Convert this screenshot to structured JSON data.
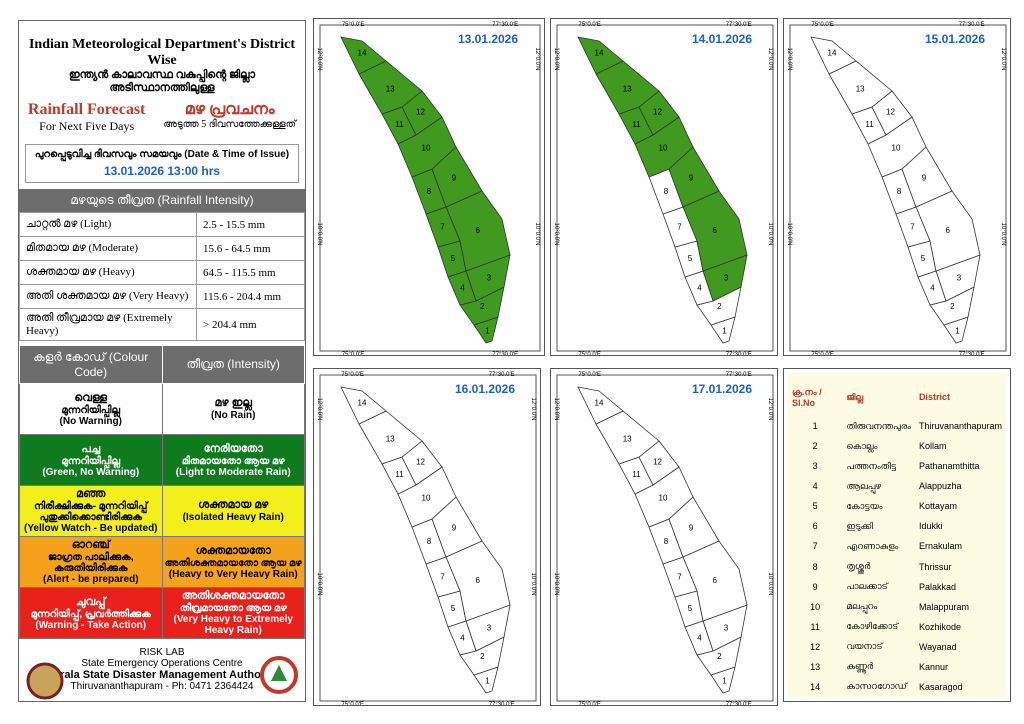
{
  "header": {
    "title": "Indian Meteorological Department's District Wise",
    "title_ml": "ഇന്ത്യൻ കാലാവസ്ഥ വകുപ്പിന്റെ ജില്ലാ അടിസ്ഥാനത്തിലുള്ള",
    "subtitle": "Rainfall Forecast",
    "subtitle_ml": "മഴ പ്രവചനം",
    "period": "For Next Five Days",
    "period_ml": "അടുത്ത 5 ദിവസത്തേക്കുള്ളത്"
  },
  "issue": {
    "label": "പുറപ്പെടുവിച്ച ദിവസവും സമയവും (Date & Time of Issue)",
    "datetime": "13.01.2026  13:00 hrs"
  },
  "intensity": {
    "title": "മഴയുടെ തീവ്രത (Rainfall Intensity)",
    "rows": [
      [
        "ചാറ്റൽ മഴ (Light)",
        "2.5 - 15.5 mm"
      ],
      [
        "മിതമായ മഴ (Moderate)",
        "15.6 - 64.5 mm"
      ],
      [
        "ശക്തമായ മഴ (Heavy)",
        "64.5 - 115.5 mm"
      ],
      [
        "അതി ശക്തമായ മഴ (Very Heavy)",
        "115.6 - 204.4 mm"
      ],
      [
        "അതി തീവ്രമായ മഴ (Extremely Heavy)",
        "> 204.4 mm"
      ]
    ]
  },
  "colour_code": {
    "headers": [
      "കളർ കോഡ് (Colour Code)",
      "തീവ്രത (Intensity)"
    ],
    "rows": [
      {
        "color": "#ffffff",
        "text_color": "#000000",
        "code": [
          "വെള്ള",
          "മുന്നറിയിപ്പില്ല",
          "(No Warning)"
        ],
        "intensity": [
          "മഴ ഇല്ല",
          "(No Rain)"
        ]
      },
      {
        "color": "#107a1f",
        "text_color": "#ffffff",
        "code": [
          "പച്ച",
          "മുന്നറിയിപ്പില്ല",
          "(Green, No Warning)"
        ],
        "intensity": [
          "നേരിയതോ",
          "മിതമായതോ ആയ മഴ",
          "(Light to Moderate Rain)"
        ]
      },
      {
        "color": "#f2ef1c",
        "text_color": "#000000",
        "code": [
          "മഞ്ഞ",
          "നിരീക്ഷിക്കുക- മുന്നറിയിപ്പ്",
          "പുതുക്കിക്കൊണ്ടിരിക്കുക",
          "(Yellow Watch - Be updated)"
        ],
        "intensity": [
          "ശക്തമായ മഴ",
          "(Isolated Heavy Rain)"
        ]
      },
      {
        "color": "#f4a21b",
        "text_color": "#000000",
        "code": [
          "ഓറഞ്ച്",
          "ജാഗ്രത പാലിക്കുക, കരുതിയിരിക്കുക",
          "(Alert - be prepared)"
        ],
        "intensity": [
          "ശക്തമായതോ",
          "അതിശക്തമായതോ ആയ മഴ",
          "(Heavy to Very Heavy Rain)"
        ]
      },
      {
        "color": "#e8211c",
        "text_color": "#ffffff",
        "code": [
          "ചുവപ്പ്",
          "മുന്നറിയിപ്പ്, പ്രവർത്തിക്കുക",
          "(Warning - Take Action)"
        ],
        "intensity": [
          "അതിശക്തമായതോ",
          "തീവ്രമായതോ ആയ മഴ",
          "(Very Heavy to Extremely Heavy Rain)"
        ]
      }
    ]
  },
  "footer": {
    "lines": [
      "RISK LAB",
      "State Emergency Operations Centre",
      "Kerala State Disaster Management Authority",
      "Thiruvananthapuram - Ph: 0471 2364424"
    ]
  },
  "map_axes": {
    "lon": [
      "75°0.0'E",
      "77°30.0'E"
    ],
    "lat": [
      "12°0.0'N",
      "10°0.0'N"
    ]
  },
  "maps": [
    {
      "date": "13.01.2026",
      "fills": [
        "#3f9a1f",
        "#3f9a1f",
        "#3f9a1f",
        "#3f9a1f",
        "#3f9a1f",
        "#3f9a1f",
        "#3f9a1f",
        "#3f9a1f",
        "#3f9a1f",
        "#3f9a1f",
        "#3f9a1f",
        "#3f9a1f",
        "#3f9a1f",
        "#3f9a1f"
      ]
    },
    {
      "date": "14.01.2026",
      "fills": [
        "#ffffff",
        "#ffffff",
        "#3f9a1f",
        "#ffffff",
        "#ffffff",
        "#3f9a1f",
        "#ffffff",
        "#ffffff",
        "#3f9a1f",
        "#3f9a1f",
        "#3f9a1f",
        "#3f9a1f",
        "#3f9a1f",
        "#3f9a1f"
      ]
    },
    {
      "date": "15.01.2026",
      "fills": [
        "#ffffff",
        "#ffffff",
        "#ffffff",
        "#ffffff",
        "#ffffff",
        "#ffffff",
        "#ffffff",
        "#ffffff",
        "#ffffff",
        "#ffffff",
        "#ffffff",
        "#ffffff",
        "#ffffff",
        "#ffffff"
      ]
    },
    {
      "date": "16.01.2026",
      "fills": [
        "#ffffff",
        "#ffffff",
        "#ffffff",
        "#ffffff",
        "#ffffff",
        "#ffffff",
        "#ffffff",
        "#ffffff",
        "#ffffff",
        "#ffffff",
        "#ffffff",
        "#ffffff",
        "#ffffff",
        "#ffffff"
      ]
    },
    {
      "date": "17.01.2026",
      "fills": [
        "#ffffff",
        "#ffffff",
        "#ffffff",
        "#ffffff",
        "#ffffff",
        "#ffffff",
        "#ffffff",
        "#ffffff",
        "#ffffff",
        "#ffffff",
        "#ffffff",
        "#ffffff",
        "#ffffff",
        "#ffffff"
      ]
    }
  ],
  "district_table": {
    "headers": [
      "ക്ര.നം / Sl.No",
      "ജില്ല",
      "District"
    ],
    "rows": [
      [
        "1",
        "തിരുവനന്തപുരം",
        "Thiruvananthapuram"
      ],
      [
        "2",
        "കൊല്ലം",
        "Kollam"
      ],
      [
        "3",
        "പത്തനംതിട്ട",
        "Pathanamthitta"
      ],
      [
        "4",
        "ആലപ്പുഴ",
        "Alappuzha"
      ],
      [
        "5",
        "കോട്ടയം",
        "Kottayam"
      ],
      [
        "6",
        "ഇടുക്കി",
        "Idukki"
      ],
      [
        "7",
        "എറണാകുളം",
        "Ernakulam"
      ],
      [
        "8",
        "തൃശ്ശൂർ",
        "Thrissur"
      ],
      [
        "9",
        "പാലക്കാട്",
        "Palakkad"
      ],
      [
        "10",
        "മലപ്പുറം",
        "Malappuram"
      ],
      [
        "11",
        "കോഴിക്കോട്",
        "Kozhikode"
      ],
      [
        "12",
        "വയനാട്",
        "Wayanad"
      ],
      [
        "13",
        "കണ്ണൂർ",
        "Kannur"
      ],
      [
        "14",
        "കാസറഗോഡ്",
        "Kasaragod"
      ]
    ]
  }
}
